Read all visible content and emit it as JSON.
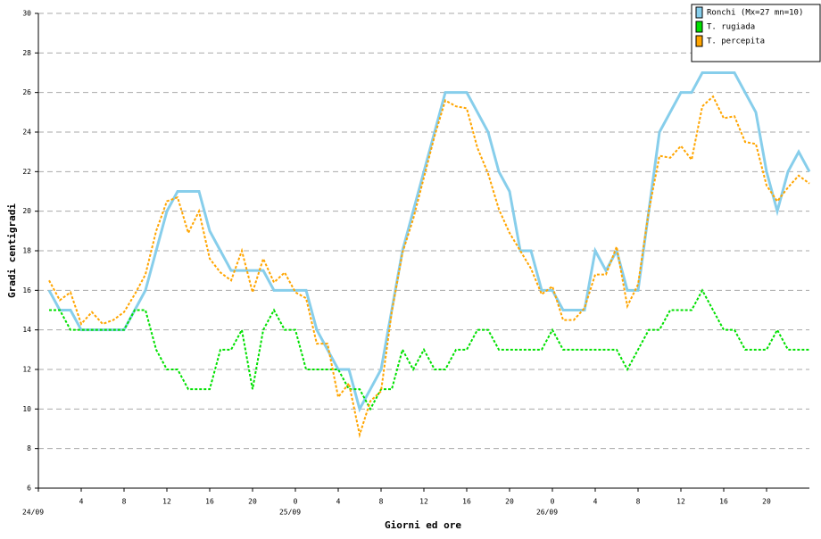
{
  "chart_data": {
    "type": "line",
    "y_label": "Gradi centigradi",
    "x_label": "Giorni ed ore",
    "x": [
      1,
      2,
      3,
      4,
      5,
      6,
      7,
      8,
      9,
      10,
      11,
      12,
      13,
      14,
      15,
      16,
      17,
      18,
      19,
      20,
      21,
      22,
      23,
      24,
      25,
      26,
      27,
      28,
      29,
      30,
      31,
      32,
      33,
      34,
      35,
      36,
      37,
      38,
      39,
      40,
      41,
      42,
      43,
      44,
      45,
      46,
      47,
      48,
      49,
      50,
      51,
      52,
      53,
      54,
      55,
      56,
      57,
      58,
      59,
      60,
      61,
      62,
      63,
      64,
      65,
      66,
      67,
      68,
      69,
      70,
      71,
      72
    ],
    "series": [
      {
        "name": "Ronchi (Mx=27 mn=10)",
        "color": "#87ceeb",
        "dashed": false,
        "values": [
          16,
          15,
          15,
          14,
          14,
          14,
          14,
          14,
          15,
          16,
          18,
          20,
          21,
          21,
          21,
          19,
          18,
          17,
          17,
          17,
          17,
          16,
          16,
          16,
          16,
          14,
          13,
          12,
          12,
          10,
          11,
          12,
          15,
          18,
          20,
          22,
          24,
          26,
          26,
          26,
          25,
          24,
          22,
          21,
          18,
          18,
          16,
          16,
          15,
          15,
          15,
          18,
          17,
          18,
          16,
          16,
          20,
          24,
          25,
          26,
          26,
          27,
          27,
          27,
          27,
          26,
          25,
          22,
          20,
          22,
          23,
          22
        ]
      },
      {
        "name": "T. rugiada",
        "color": "#00e000",
        "dashed": true,
        "values": [
          15,
          15,
          14,
          14,
          14,
          14,
          14,
          14,
          15,
          15,
          13,
          12,
          12,
          11,
          11,
          11,
          13,
          13,
          14,
          11,
          14,
          15,
          14,
          14,
          12,
          12,
          12,
          12,
          11,
          11,
          10,
          11,
          11,
          13,
          12,
          13,
          12,
          12,
          13,
          13,
          14,
          14,
          13,
          13,
          13,
          13,
          13,
          14,
          13,
          13,
          13,
          13,
          13,
          13,
          12,
          13,
          14,
          14,
          15,
          15,
          15,
          16,
          15,
          14,
          14,
          13,
          13,
          13,
          14,
          13,
          13,
          13
        ]
      },
      {
        "name": "T. percepita",
        "color": "#ffa500",
        "dashed": true,
        "values": [
          16.5,
          15.5,
          15.9,
          14.3,
          14.9,
          14.3,
          14.5,
          14.9,
          15.8,
          16.8,
          19,
          20.5,
          20.7,
          18.9,
          20,
          17.6,
          16.9,
          16.5,
          18,
          15.9,
          17.6,
          16.4,
          16.9,
          15.9,
          15.6,
          13.3,
          13.3,
          10.6,
          11.3,
          8.7,
          10.4,
          10.9,
          14.9,
          17.9,
          19.6,
          21.7,
          23.8,
          25.6,
          25.3,
          25.2,
          23.2,
          21.9,
          20.1,
          18.9,
          18,
          17.1,
          15.8,
          16.2,
          14.5,
          14.5,
          15.1,
          16.8,
          16.8,
          18.2,
          15.2,
          16.3,
          20,
          22.8,
          22.7,
          23.3,
          22.6,
          25.3,
          25.8,
          24.7,
          24.8,
          23.5,
          23.4,
          21.3,
          20.5,
          21.2,
          21.8,
          21.4
        ]
      }
    ],
    "xlim": [
      0,
      72
    ],
    "xticks": [
      4,
      8,
      12,
      16,
      20,
      {
        "value": 24,
        "label": "0"
      },
      {
        "value": 28,
        "label": "4"
      },
      {
        "value": 32,
        "label": "8"
      },
      {
        "value": 36,
        "label": "12"
      },
      {
        "value": 40,
        "label": "16"
      },
      {
        "value": 44,
        "label": "20"
      },
      {
        "value": 48,
        "label": "0"
      },
      {
        "value": 52,
        "label": "4"
      },
      {
        "value": 56,
        "label": "8"
      },
      {
        "value": 60,
        "label": "12"
      },
      {
        "value": 64,
        "label": "16"
      },
      {
        "value": 68,
        "label": "20"
      }
    ],
    "xdates": [
      {
        "value": 0,
        "label": "24/09"
      },
      {
        "value": 24,
        "label": "25/09"
      },
      {
        "value": 48,
        "label": "26/09"
      }
    ],
    "ylim": [
      6,
      30
    ],
    "yticks": [
      6,
      8,
      10,
      12,
      14,
      16,
      18,
      20,
      22,
      24,
      26,
      28,
      30
    ],
    "grid": true,
    "legend": "top-right"
  }
}
